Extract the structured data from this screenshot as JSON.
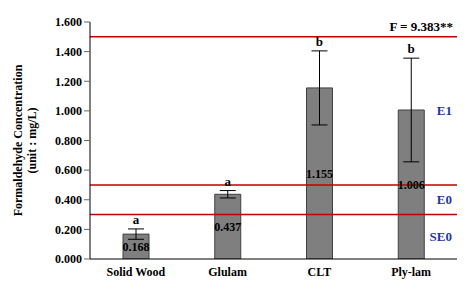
{
  "chart_data": {
    "type": "bar",
    "y_label": "Formaldehyde Concentration (unit : mg/L)",
    "categories": [
      "Solid Wood",
      "Glulam",
      "CLT",
      "Ply-lam"
    ],
    "values": [
      0.168,
      0.437,
      1.155,
      1.006
    ],
    "errors": [
      0.035,
      0.025,
      0.25,
      0.35
    ],
    "groups": [
      "a",
      "a",
      "b",
      "b"
    ],
    "color": "#7f7f7f",
    "data_labels": true,
    "annotation": "F = 9.383**",
    "reference_lines": [
      {
        "value": 1.5,
        "label": "E1"
      },
      {
        "value": 0.5,
        "label": "E0"
      },
      {
        "value": 0.3,
        "label": "SE0"
      }
    ],
    "ylim": [
      0,
      1.6
    ],
    "yticks": [
      {
        "value": 0,
        "label": "0.000"
      },
      {
        "value": 0.2,
        "label": "0.200"
      },
      {
        "value": 0.4,
        "label": "0.400"
      },
      {
        "value": 0.6,
        "label": "0.600"
      },
      {
        "value": 0.8,
        "label": "0.800"
      },
      {
        "value": 1.0,
        "label": "1.000"
      },
      {
        "value": 1.2,
        "label": "1.200"
      },
      {
        "value": 1.4,
        "label": "1.400"
      },
      {
        "value": 1.6,
        "label": "1.600"
      }
    ]
  }
}
